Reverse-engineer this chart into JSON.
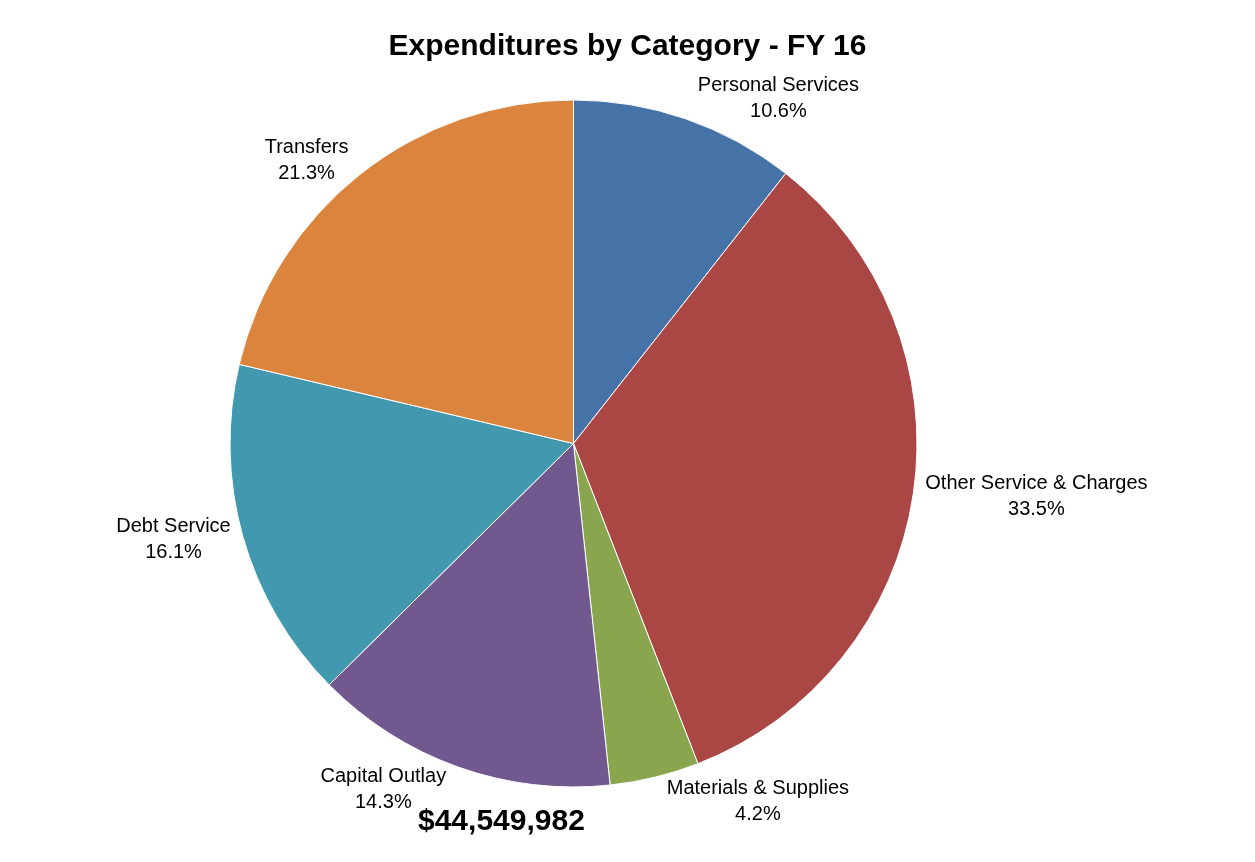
{
  "chart_data": {
    "type": "pie",
    "title": "Expenditures by Category - FY 16",
    "categories": [
      "Personal Services",
      "Other Service & Charges",
      "Materials & Supplies",
      "Capital Outlay",
      "Debt Service",
      "Transfers"
    ],
    "values": [
      10.6,
      33.5,
      4.2,
      14.3,
      16.1,
      21.3
    ],
    "value_labels": [
      "10.6%",
      "33.5%",
      "4.2%",
      "14.3%",
      "16.1%",
      "21.3%"
    ],
    "colors": [
      "#4572a7",
      "#aa4643",
      "#89a54e",
      "#71588f",
      "#4198af",
      "#db843d"
    ],
    "annotations": [
      "$44,549,982"
    ],
    "legend": false
  }
}
